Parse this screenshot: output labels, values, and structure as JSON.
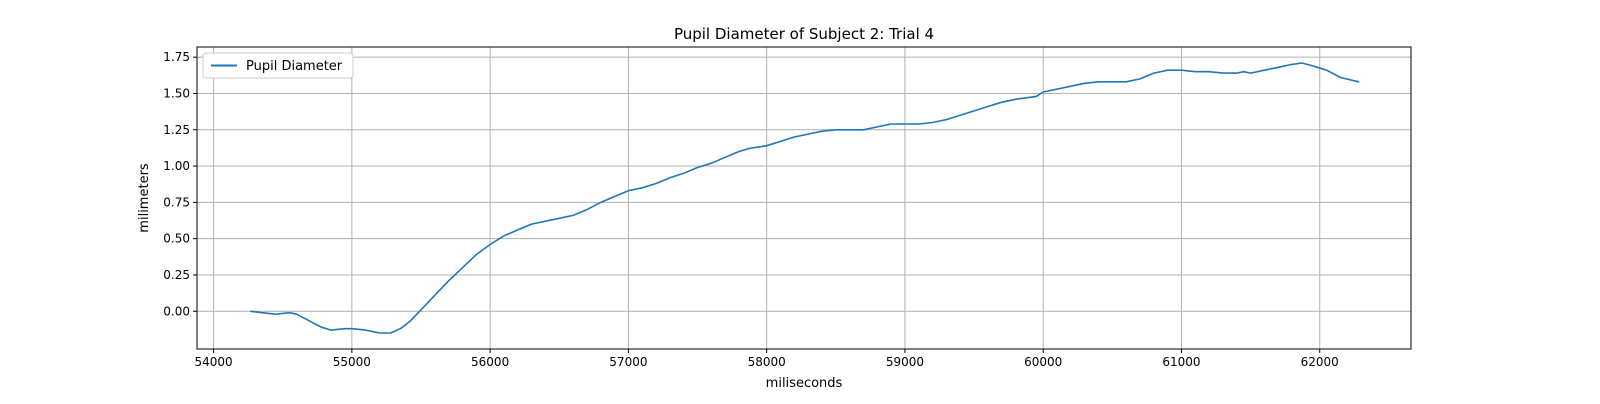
{
  "chart_data": {
    "type": "line",
    "title": "Pupil Diameter of Subject 2: Trial 4",
    "xlabel": "miliseconds",
    "ylabel": "milimeters",
    "xlim": [
      53880,
      62660
    ],
    "ylim": [
      -0.26,
      1.82
    ],
    "xticks": [
      54000,
      55000,
      56000,
      57000,
      58000,
      59000,
      60000,
      61000,
      62000
    ],
    "xtick_labels": [
      "54000",
      "55000",
      "56000",
      "57000",
      "58000",
      "59000",
      "60000",
      "61000",
      "62000"
    ],
    "yticks": [
      0.0,
      0.25,
      0.5,
      0.75,
      1.0,
      1.25,
      1.5,
      1.75
    ],
    "ytick_labels": [
      "0.00",
      "0.25",
      "0.50",
      "0.75",
      "1.00",
      "1.25",
      "1.50",
      "1.75"
    ],
    "grid": true,
    "legend_position": "top-left",
    "series": [
      {
        "name": "Pupil Diameter",
        "color": "#1f77b4",
        "x": [
          54270,
          54350,
          54450,
          54550,
          54600,
          54700,
          54780,
          54850,
          54950,
          55000,
          55100,
          55200,
          55280,
          55350,
          55420,
          55500,
          55600,
          55700,
          55800,
          55900,
          56000,
          56100,
          56200,
          56300,
          56400,
          56500,
          56600,
          56700,
          56800,
          56900,
          57000,
          57100,
          57200,
          57300,
          57400,
          57500,
          57600,
          57700,
          57800,
          57870,
          58000,
          58100,
          58200,
          58300,
          58400,
          58500,
          58600,
          58700,
          58800,
          58900,
          59000,
          59100,
          59200,
          59300,
          59400,
          59500,
          59600,
          59700,
          59800,
          59950,
          60000,
          60100,
          60200,
          60300,
          60400,
          60500,
          60600,
          60700,
          60800,
          60900,
          61000,
          61100,
          61200,
          61300,
          61400,
          61450,
          61500,
          61600,
          61700,
          61800,
          61870,
          61950,
          62050,
          62150,
          62280
        ],
        "values": [
          0.0,
          -0.01,
          -0.02,
          -0.01,
          -0.02,
          -0.07,
          -0.11,
          -0.13,
          -0.12,
          -0.12,
          -0.13,
          -0.15,
          -0.15,
          -0.12,
          -0.07,
          0.01,
          0.11,
          0.21,
          0.3,
          0.39,
          0.46,
          0.52,
          0.56,
          0.6,
          0.62,
          0.64,
          0.66,
          0.7,
          0.75,
          0.79,
          0.83,
          0.85,
          0.88,
          0.92,
          0.95,
          0.99,
          1.02,
          1.06,
          1.1,
          1.12,
          1.14,
          1.17,
          1.2,
          1.22,
          1.24,
          1.25,
          1.25,
          1.25,
          1.27,
          1.29,
          1.29,
          1.29,
          1.3,
          1.32,
          1.35,
          1.38,
          1.41,
          1.44,
          1.46,
          1.48,
          1.51,
          1.53,
          1.55,
          1.57,
          1.58,
          1.58,
          1.58,
          1.6,
          1.64,
          1.66,
          1.66,
          1.65,
          1.65,
          1.64,
          1.64,
          1.65,
          1.64,
          1.66,
          1.68,
          1.7,
          1.71,
          1.69,
          1.66,
          1.61,
          1.58
        ]
      }
    ]
  }
}
